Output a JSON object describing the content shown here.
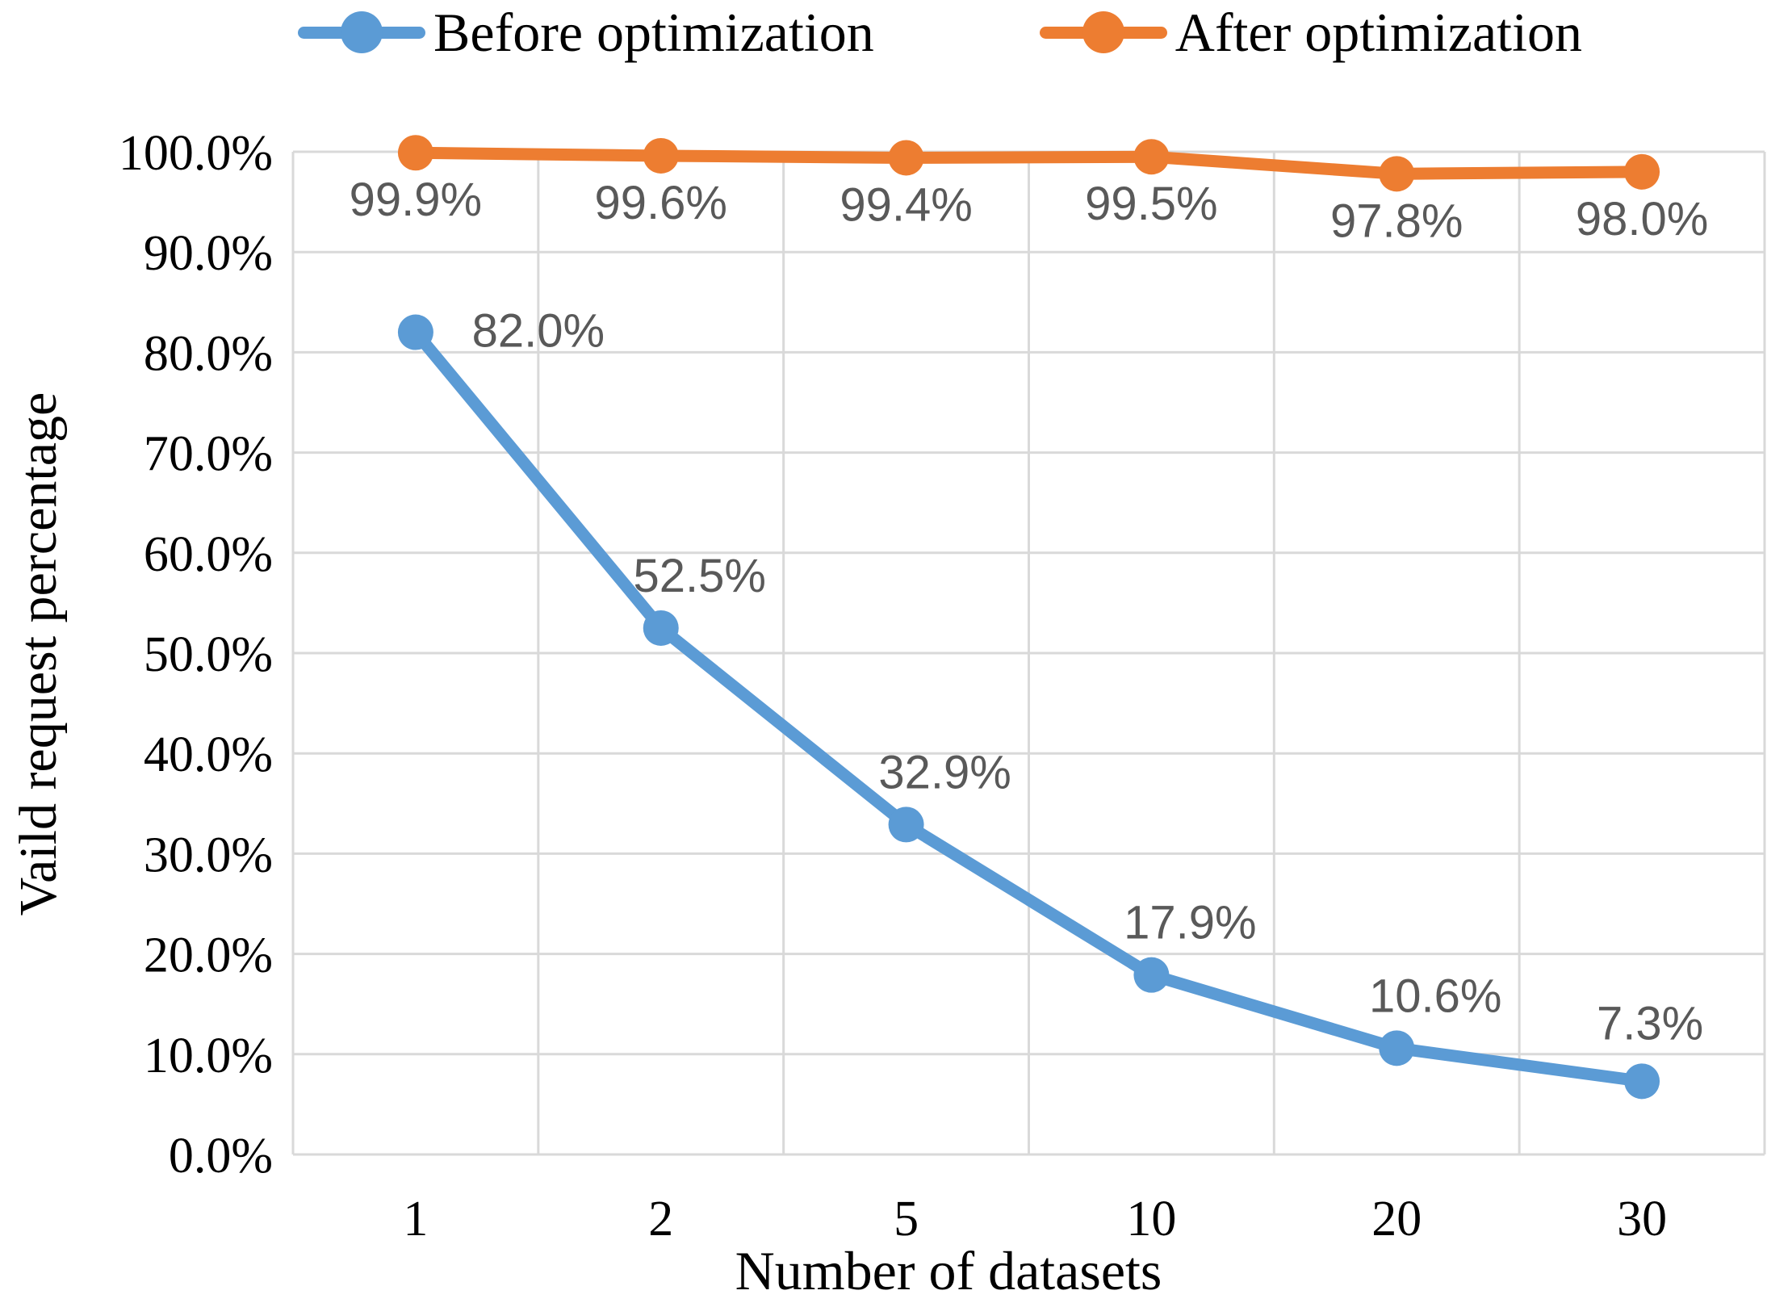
{
  "chart_data": {
    "type": "line",
    "xlabel": "Number of datasets",
    "ylabel": "Vaild request percentage",
    "categories": [
      "1",
      "2",
      "5",
      "10",
      "20",
      "30"
    ],
    "series": [
      {
        "name": "Before optimization",
        "color": "#5B9BD5",
        "values": [
          82.0,
          52.5,
          32.9,
          17.9,
          10.6,
          7.3
        ],
        "labels": [
          "82.0%",
          "52.5%",
          "32.9%",
          "17.9%",
          "10.6%",
          "7.3%"
        ]
      },
      {
        "name": "After optimization",
        "color": "#ED7D31",
        "values": [
          99.9,
          99.6,
          99.4,
          99.5,
          97.8,
          98.0
        ],
        "labels": [
          "99.9%",
          "99.6%",
          "99.4%",
          "99.5%",
          "97.8%",
          "98.0%"
        ]
      }
    ],
    "y_ticks": [
      "100.0%",
      "90.0%",
      "80.0%",
      "70.0%",
      "60.0%",
      "50.0%",
      "40.0%",
      "30.0%",
      "20.0%",
      "10.0%",
      "0.0%"
    ],
    "ylim": [
      0,
      100
    ],
    "grid": true,
    "legend_position": "top",
    "colors": {
      "gridline": "#D9D9D9",
      "data_label": "#595959",
      "axis_text": "#000000",
      "background": "#FFFFFF"
    }
  }
}
